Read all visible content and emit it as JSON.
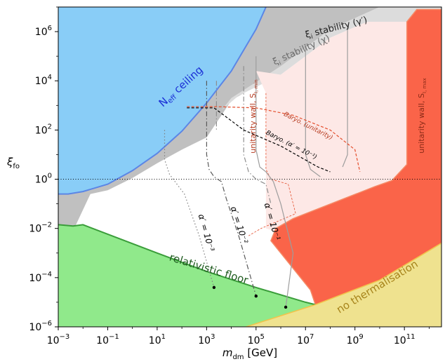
{
  "chart_data": {
    "type": "area",
    "title": "",
    "xlabel": "m_dm [GeV]",
    "xlabel_parts": {
      "symbol": "m",
      "sub": "dm",
      "unit": "[GeV]"
    },
    "ylabel": "ξ_fo",
    "ylabel_parts": {
      "symbol": "ξ",
      "sub": "fo"
    },
    "xscale": "log",
    "yscale": "log",
    "xlim_log10": [
      -3,
      12.5
    ],
    "ylim_log10": [
      -6,
      7
    ],
    "x_ticks": [
      {
        "base": "10",
        "exp": "−3",
        "log": -3
      },
      {
        "base": "10",
        "exp": "−1",
        "log": -1
      },
      {
        "base": "10",
        "exp": "1",
        "log": 1
      },
      {
        "base": "10",
        "exp": "3",
        "log": 3
      },
      {
        "base": "10",
        "exp": "5",
        "log": 5
      },
      {
        "base": "10",
        "exp": "7",
        "log": 7
      },
      {
        "base": "10",
        "exp": "9",
        "log": 9
      },
      {
        "base": "10",
        "exp": "11",
        "log": 11
      }
    ],
    "y_ticks": [
      {
        "base": "10",
        "exp": "−6",
        "log": -6
      },
      {
        "base": "10",
        "exp": "−4",
        "log": -4
      },
      {
        "base": "10",
        "exp": "−2",
        "log": -2
      },
      {
        "base": "10",
        "exp": "0",
        "log": 0
      },
      {
        "base": "10",
        "exp": "2",
        "log": 2
      },
      {
        "base": "10",
        "exp": "4",
        "log": 4
      },
      {
        "base": "10",
        "exp": "6",
        "log": 6
      }
    ],
    "reference_line": {
      "y_log": 0,
      "style": "dotted"
    },
    "regions": [
      {
        "name": "N_eff ceiling",
        "label": "N",
        "label_sub": "eff",
        "label_rest": " ceiling",
        "color": "#89cdf7",
        "edge": "#5b86e6",
        "boundary": [
          [
            -3,
            -0.6
          ],
          [
            -2.6,
            -0.6
          ],
          [
            -2,
            -0.5
          ],
          [
            -1,
            -0.2
          ],
          [
            0,
            0.35
          ],
          [
            1,
            1.05
          ],
          [
            2,
            1.95
          ],
          [
            3,
            3.1
          ],
          [
            4,
            4.4
          ],
          [
            5,
            6.1
          ],
          [
            5.4,
            7
          ]
        ]
      },
      {
        "name": "grey excluded",
        "color": "#c0c0c0",
        "boundary": [
          [
            -1.3,
            -2.1
          ],
          [
            -2.4,
            -2.1
          ],
          [
            -1.7,
            -0.6
          ],
          [
            -1,
            -0.45
          ],
          [
            0,
            0.05
          ],
          [
            1,
            0.65
          ],
          [
            2,
            1.2
          ],
          [
            3,
            1.7
          ],
          [
            4,
            3.2
          ],
          [
            6,
            4.4
          ],
          [
            8,
            6.1
          ],
          [
            10,
            7
          ]
        ]
      },
      {
        "name": "ξ_i stability (χ)",
        "label": "ξ",
        "label_sub": "i",
        "label_rest": " stability (χ)",
        "color": "#dcdcdc",
        "boundary": [
          [
            4,
            3.2
          ],
          [
            6,
            4.4
          ],
          [
            8,
            5.9
          ],
          [
            10,
            7
          ]
        ]
      },
      {
        "name": "ξ_i stability (γ′)",
        "label": "ξ",
        "label_sub": "i",
        "label_rest": " stability (γ′)",
        "color": "#bdbdbd",
        "boundary": [
          [
            6,
            4.4
          ],
          [
            8,
            6.1
          ],
          [
            10,
            7
          ]
        ]
      },
      {
        "name": "relativistic floor",
        "label": "relativistic floor",
        "color": "#90e98b",
        "edge": "#3a9d3a",
        "boundary": [
          [
            -3,
            -1.85
          ],
          [
            -2.4,
            -1.9
          ],
          [
            -2,
            -1.85
          ],
          [
            1,
            -3.0
          ],
          [
            3,
            -3.75
          ],
          [
            5,
            -4.4
          ],
          [
            7,
            -5.0
          ],
          [
            7.4,
            -5.1
          ]
        ]
      },
      {
        "name": "no thermalisation",
        "label": "no thermalisation",
        "color": "#efe28f",
        "edge": "#f2c34a",
        "boundary": [
          [
            4.6,
            -6
          ],
          [
            7.4,
            -5.1
          ],
          [
            10,
            -4.1
          ],
          [
            12.5,
            -2.6
          ]
        ]
      },
      {
        "name": "unitarity wall, S_I max",
        "label": "unitarity wall, S",
        "label_sub": "I, max",
        "color": "#fa6449",
        "edge": "#f58a66",
        "boundary": [
          [
            7.4,
            -5.1
          ],
          [
            5.5,
            -2.7
          ],
          [
            7.5,
            -1.2
          ],
          [
            10.5,
            -0.1
          ],
          [
            11.1,
            0.6
          ],
          [
            11.1,
            7
          ]
        ]
      },
      {
        "name": "unitarity wall, S_I min",
        "label": "unitarity wall, S",
        "label_sub": "I, min",
        "color": "#fde8e6",
        "edge": "#e44d2b",
        "boundary": [
          [
            3.4,
            3.0
          ],
          [
            3.4,
            -2.2
          ],
          [
            5,
            -2.7
          ],
          [
            5.5,
            -2.7
          ],
          [
            7.5,
            -1.2
          ],
          [
            10.5,
            -0.1
          ],
          [
            11.1,
            0.6
          ],
          [
            11.1,
            7
          ]
        ]
      }
    ],
    "series": [
      {
        "name": "α′ = 10⁻³",
        "label": "α′ = 10⁻³",
        "style": "dotted",
        "color": "#7f7f7f",
        "points": [
          [
            1.3,
            2.0
          ],
          [
            1.3,
            0.8
          ],
          [
            1.5,
            0.2
          ],
          [
            1.8,
            -0.2
          ],
          [
            2.1,
            -0.6
          ],
          [
            2.7,
            -2.3
          ],
          [
            3.3,
            -4.4
          ]
        ],
        "endpoint": [
          3.3,
          -4.4
        ]
      },
      {
        "name": "α′ = 10⁻²",
        "label": "α′ = 10⁻²",
        "style": "dashdot",
        "color": "#595959",
        "points": [
          [
            3.0,
            4.0
          ],
          [
            3.0,
            1.0
          ],
          [
            3.1,
            0.4
          ],
          [
            3.3,
            0.1
          ],
          [
            3.6,
            -0.1
          ],
          [
            3.8,
            -0.8
          ],
          [
            4.3,
            -2.3
          ],
          [
            5,
            -4.75
          ]
        ],
        "endpoint": [
          5,
          -4.75
        ]
      },
      {
        "name": "α′ = 10⁻¹",
        "label": "α′ = 10⁻¹",
        "style": "solid",
        "color": "#9d9d9d",
        "points": [
          [
            5.0,
            5.0
          ],
          [
            5.0,
            1.2
          ],
          [
            5.15,
            0.5
          ],
          [
            5.4,
            0.3
          ],
          [
            5.7,
            -0.1
          ],
          [
            6.0,
            -1.0
          ],
          [
            6.5,
            -3.0
          ],
          [
            6.2,
            -5.2
          ]
        ],
        "endpoint": [
          6.2,
          -5.2
        ]
      },
      {
        "name": "Baryo. (α′ = 10⁻¹)",
        "label": "Baryo. (α′ = 10⁻¹)",
        "style": "dashed",
        "color": "#000000",
        "points": [
          [
            2.2,
            2.9
          ],
          [
            3.3,
            2.9
          ],
          [
            4.5,
            2.0
          ],
          [
            6.0,
            1.35
          ],
          [
            7.5,
            0.5
          ],
          [
            8.0,
            0.3
          ]
        ]
      },
      {
        "name": "Baryo. (unitarity)",
        "label": "Baryo. (unitarity)",
        "style": "dashed",
        "color": "#e44d2b",
        "points": [
          [
            2.2,
            2.95
          ],
          [
            3.4,
            2.95
          ],
          [
            5.0,
            2.9
          ],
          [
            6.5,
            2.6
          ],
          [
            8.0,
            2.0
          ],
          [
            9.0,
            1.2
          ],
          [
            9.2,
            0.3
          ]
        ]
      }
    ],
    "grey_boundary_lines": [
      {
        "style": "dashdot",
        "color": "#8e8e8e",
        "points": [
          [
            3.4,
            4.0
          ],
          [
            3.4,
            2.0
          ]
        ]
      },
      {
        "style": "dashdot",
        "color": "#8e8e8e",
        "points": [
          [
            4.5,
            4.6
          ],
          [
            4.5,
            1.0
          ],
          [
            4.7,
            0.3
          ],
          [
            5.0,
            0.0
          ],
          [
            5.4,
            -0.2
          ],
          [
            5.6,
            -1.0
          ]
        ]
      },
      {
        "style": "solid",
        "color": "#9d9d9d",
        "points": [
          [
            7.0,
            5.5
          ],
          [
            7.0,
            1.0
          ],
          [
            7.2,
            0.4
          ],
          [
            7.6,
            0.1
          ]
        ]
      },
      {
        "style": "solid",
        "color": "#9d9d9d",
        "points": [
          [
            8.7,
            6.3
          ],
          [
            8.7,
            1.0
          ],
          [
            8.5,
            0.5
          ]
        ]
      }
    ]
  }
}
